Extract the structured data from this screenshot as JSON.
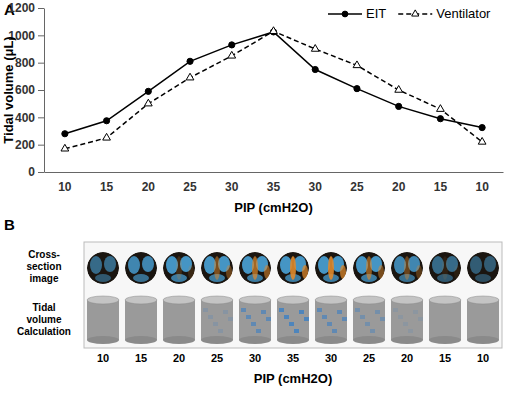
{
  "chart_data": {
    "type": "line",
    "title": "A",
    "x_label": "PIP (cmH2O)",
    "y_label": "Tidal volume (μL)",
    "categories": [
      "10",
      "15",
      "20",
      "25",
      "30",
      "35",
      "30",
      "25",
      "20",
      "15",
      "10"
    ],
    "series": [
      {
        "name": "EIT",
        "color": "#000000",
        "marker": "circle",
        "line_style": "solid",
        "values": [
          280,
          375,
          590,
          810,
          930,
          1025,
          750,
          610,
          480,
          390,
          325
        ]
      },
      {
        "name": "Ventilator",
        "color": "#000000",
        "marker": "triangle",
        "line_style": "dashed",
        "values": [
          170,
          250,
          500,
          690,
          850,
          1030,
          900,
          780,
          600,
          460,
          220
        ]
      }
    ],
    "ylim": [
      0,
      1200
    ],
    "yticks": [
      0,
      200,
      400,
      600,
      800,
      1000,
      1200
    ],
    "grid": false,
    "legend": "upper right"
  },
  "panel_b": {
    "title": "B",
    "rows": [
      [
        "Cross-",
        "section",
        "image"
      ],
      [
        "Tidal",
        "volume",
        "Calculation"
      ]
    ],
    "categories": [
      "10",
      "15",
      "20",
      "25",
      "30",
      "35",
      "30",
      "25",
      "20",
      "15",
      "10"
    ],
    "x_label": "PIP (cmH2O)"
  }
}
